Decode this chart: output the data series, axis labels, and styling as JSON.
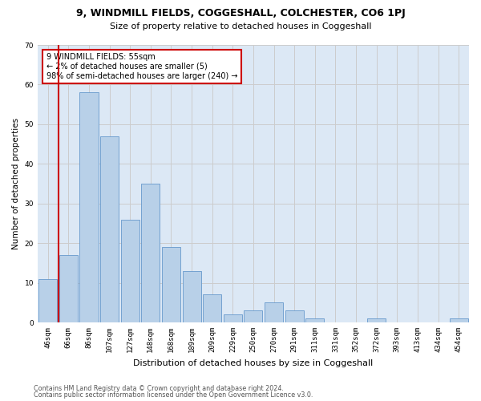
{
  "title1": "9, WINDMILL FIELDS, COGGESHALL, COLCHESTER, CO6 1PJ",
  "title2": "Size of property relative to detached houses in Coggeshall",
  "xlabel": "Distribution of detached houses by size in Coggeshall",
  "ylabel": "Number of detached properties",
  "categories": [
    "46sqm",
    "66sqm",
    "86sqm",
    "107sqm",
    "127sqm",
    "148sqm",
    "168sqm",
    "189sqm",
    "209sqm",
    "229sqm",
    "250sqm",
    "270sqm",
    "291sqm",
    "311sqm",
    "331sqm",
    "352sqm",
    "372sqm",
    "393sqm",
    "413sqm",
    "434sqm",
    "454sqm"
  ],
  "values": [
    11,
    17,
    58,
    47,
    26,
    35,
    19,
    13,
    7,
    2,
    3,
    5,
    3,
    1,
    0,
    0,
    1,
    0,
    0,
    0,
    1
  ],
  "bar_color": "#b8d0e8",
  "bar_edge_color": "#6699cc",
  "highlight_color": "#cc0000",
  "annotation_text": "9 WINDMILL FIELDS: 55sqm\n← 2% of detached houses are smaller (5)\n98% of semi-detached houses are larger (240) →",
  "annotation_box_color": "#ffffff",
  "annotation_box_edge_color": "#cc0000",
  "ylim": [
    0,
    70
  ],
  "yticks": [
    0,
    10,
    20,
    30,
    40,
    50,
    60,
    70
  ],
  "grid_color": "#cccccc",
  "bg_color": "#dce8f5",
  "fig_bg_color": "#ffffff",
  "footer1": "Contains HM Land Registry data © Crown copyright and database right 2024.",
  "footer2": "Contains public sector information licensed under the Open Government Licence v3.0.",
  "title1_fontsize": 9,
  "title2_fontsize": 8,
  "xlabel_fontsize": 8,
  "ylabel_fontsize": 7.5,
  "tick_fontsize": 6.5,
  "annotation_fontsize": 7,
  "footer_fontsize": 5.8,
  "vline_x": 0.5
}
